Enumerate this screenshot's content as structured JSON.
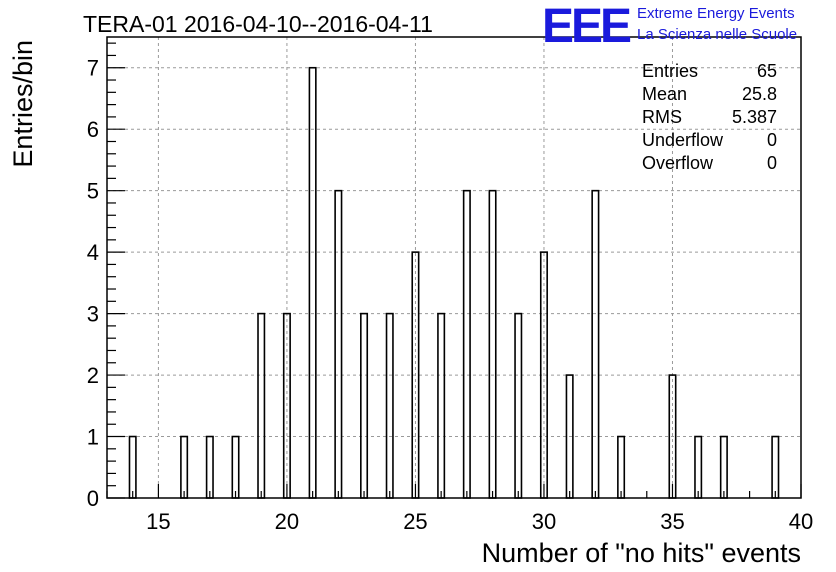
{
  "chart_data": {
    "type": "bar",
    "title": "TERA-01 2016-04-10--2016-04-11",
    "xlabel": "Number of \"no hits\" events",
    "ylabel": "Entries/bin",
    "xlim": [
      13,
      40
    ],
    "ylim": [
      0,
      7.5
    ],
    "bin_width": 0.25,
    "xticks": [
      15,
      20,
      25,
      30,
      35,
      40
    ],
    "yticks": [
      0,
      1,
      2,
      3,
      4,
      5,
      6,
      7
    ],
    "grid": true,
    "bins": [
      {
        "x": 14,
        "y": 1
      },
      {
        "x": 16,
        "y": 1
      },
      {
        "x": 17,
        "y": 1
      },
      {
        "x": 18,
        "y": 1
      },
      {
        "x": 19,
        "y": 3
      },
      {
        "x": 20,
        "y": 3
      },
      {
        "x": 21,
        "y": 7
      },
      {
        "x": 22,
        "y": 5
      },
      {
        "x": 23,
        "y": 3
      },
      {
        "x": 24,
        "y": 3
      },
      {
        "x": 25,
        "y": 4
      },
      {
        "x": 26,
        "y": 3
      },
      {
        "x": 27,
        "y": 5
      },
      {
        "x": 28,
        "y": 5
      },
      {
        "x": 29,
        "y": 3
      },
      {
        "x": 30,
        "y": 4
      },
      {
        "x": 31,
        "y": 2
      },
      {
        "x": 32,
        "y": 5
      },
      {
        "x": 33,
        "y": 1
      },
      {
        "x": 35,
        "y": 2
      },
      {
        "x": 36,
        "y": 1
      },
      {
        "x": 37,
        "y": 1
      },
      {
        "x": 39,
        "y": 1
      }
    ],
    "stats": [
      {
        "label": "Entries",
        "value": "65"
      },
      {
        "label": "Mean",
        "value": "25.8"
      },
      {
        "label": "RMS",
        "value": "5.387"
      },
      {
        "label": "Underflow",
        "value": "0"
      },
      {
        "label": "Overflow",
        "value": "0"
      }
    ],
    "stats_placement": "top-right"
  },
  "logo": {
    "mark": "EEE",
    "line1": "Extreme Energy Events",
    "line2": "La Scienza nelle Scuole",
    "color": "#1a1adc"
  }
}
